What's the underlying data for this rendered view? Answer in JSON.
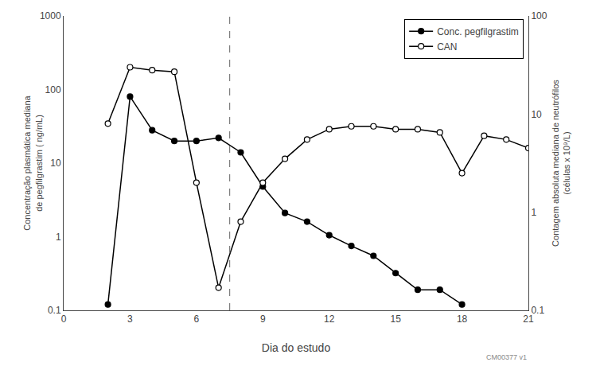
{
  "chart_data": {
    "type": "line",
    "xlabel": "Dia do estudo",
    "ylabel": "Concentração plasmática mediana\nde pegfilgrastim ( ng/mL)",
    "y2label": "Contagem absoluta mediana de neutrófilos\n(células x 10⁹/L)",
    "log": "y",
    "grid": false,
    "legend": "upper right",
    "xlim": [
      0,
      21
    ],
    "xticks": [
      0,
      3,
      6,
      9,
      12,
      15,
      18,
      21
    ],
    "ylim": [
      0.1,
      1000
    ],
    "yticks": [
      0.1,
      1,
      10,
      100,
      1000
    ],
    "y2lim": [
      0.1,
      100
    ],
    "y2ticks": [
      0.1,
      1,
      10,
      100
    ],
    "series": [
      {
        "name": "Conc. pegfilgrastim",
        "color": "black",
        "marker": "filled_circle",
        "x": [
          2,
          3,
          4,
          5,
          6,
          7,
          8,
          9,
          10,
          11,
          12,
          13,
          14,
          15,
          16,
          17,
          18
        ],
        "values": [
          0.12,
          80,
          28,
          20,
          20,
          22,
          14,
          4.8,
          2.1,
          1.6,
          1.05,
          0.75,
          0.55,
          0.32,
          0.19,
          0.19,
          0.12
        ]
      },
      {
        "name": "CAN",
        "color": "black",
        "marker": "open_circle",
        "axis": "y2",
        "x": [
          2,
          3,
          4,
          5,
          6,
          7,
          8,
          9,
          10,
          11,
          12,
          13,
          14,
          15,
          16,
          17,
          18,
          19,
          20,
          21
        ],
        "values": [
          8.0,
          30,
          28,
          27,
          2.0,
          0.17,
          0.8,
          2.0,
          3.5,
          5.5,
          7.0,
          7.5,
          7.5,
          7.0,
          7.0,
          6.5,
          2.5,
          6.0,
          5.5,
          4.5
        ]
      }
    ],
    "vlines": [
      {
        "x": 7.5,
        "color": "gray",
        "line_style": "dashed"
      }
    ],
    "annotations": [
      {
        "text": "CM00377 v1"
      }
    ]
  }
}
